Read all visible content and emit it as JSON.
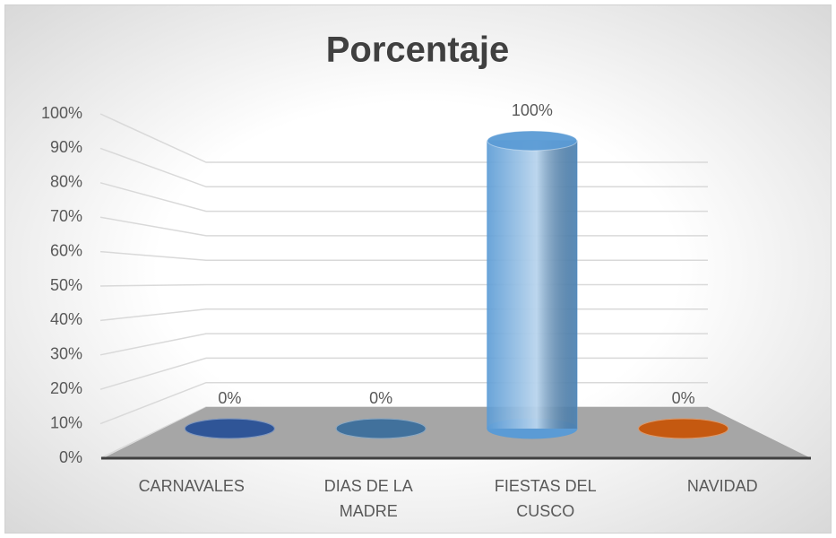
{
  "chart_data": {
    "type": "bar3d",
    "title": "Porcentaje",
    "categories": [
      "CARNAVALES",
      "DIAS DE LA MADRE",
      "FIESTAS DEL CUSCO",
      "NAVIDAD"
    ],
    "values": [
      0,
      0,
      100,
      0
    ],
    "value_labels": [
      "0%",
      "0%",
      "100%",
      "0%"
    ],
    "colors": [
      "#2f5597",
      "#41719c",
      "#5b9bd5",
      "#c55a11"
    ],
    "ylim": [
      0,
      100
    ],
    "yticks": [
      {
        "value": 0,
        "label": "0%"
      },
      {
        "value": 10,
        "label": "10%"
      },
      {
        "value": 20,
        "label": "20%"
      },
      {
        "value": 30,
        "label": "30%"
      },
      {
        "value": 40,
        "label": "40%"
      },
      {
        "value": 50,
        "label": "50%"
      },
      {
        "value": 60,
        "label": "60%"
      },
      {
        "value": 70,
        "label": "70%"
      },
      {
        "value": 80,
        "label": "80%"
      },
      {
        "value": 90,
        "label": "90%"
      },
      {
        "value": 100,
        "label": "100%"
      }
    ],
    "grid": true
  }
}
